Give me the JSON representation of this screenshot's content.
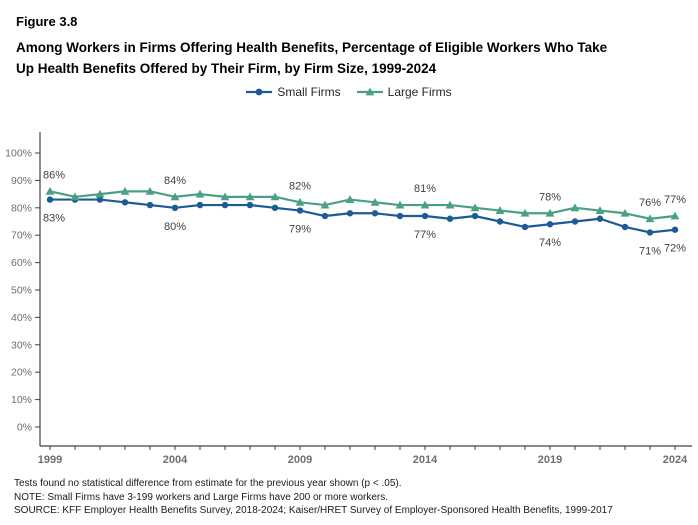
{
  "header": {
    "figure_number": "Figure 3.8",
    "title_lines": [
      "Among Workers in Firms Offering Health Benefits, Percentage of Eligible Workers Who Take",
      "Up Health Benefits Offered by Their Firm, by Firm Size, 1999-2024"
    ]
  },
  "legend": {
    "items": [
      {
        "label": "Small Firms",
        "color": "#1c5a99",
        "marker": "circle"
      },
      {
        "label": "Large Firms",
        "color": "#4aa083",
        "marker": "triangle"
      }
    ]
  },
  "chart_data": {
    "type": "line",
    "title": "Percentage of Eligible Workers Who Take Up Health Benefits, by Firm Size, 1999-2024",
    "xlabel": "",
    "ylabel": "",
    "ylim": [
      0,
      100
    ],
    "grid": false,
    "legend_position": "top-center",
    "x": [
      1999,
      2000,
      2001,
      2002,
      2003,
      2004,
      2005,
      2006,
      2007,
      2008,
      2009,
      2010,
      2011,
      2012,
      2013,
      2014,
      2015,
      2016,
      2017,
      2018,
      2019,
      2020,
      2021,
      2022,
      2023,
      2024
    ],
    "series": [
      {
        "name": "Small Firms",
        "marker": "circle",
        "color": "#1c5a99",
        "values": [
          83,
          83,
          83,
          82,
          81,
          80,
          81,
          81,
          81,
          80,
          79,
          77,
          78,
          78,
          77,
          77,
          76,
          77,
          75,
          73,
          74,
          75,
          76,
          73,
          71,
          72
        ]
      },
      {
        "name": "Large Firms",
        "marker": "triangle",
        "color": "#4aa083",
        "values": [
          86,
          84,
          85,
          86,
          86,
          84,
          85,
          84,
          84,
          84,
          82,
          81,
          83,
          82,
          81,
          81,
          81,
          80,
          79,
          78,
          78,
          80,
          79,
          78,
          76,
          77
        ]
      }
    ],
    "y_ticks": [
      "0%",
      "10%",
      "20%",
      "30%",
      "40%",
      "50%",
      "60%",
      "70%",
      "80%",
      "90%",
      "100%"
    ],
    "x_tick_labels": [
      1999,
      2004,
      2009,
      2014,
      2019,
      2024
    ],
    "point_labels": [
      {
        "series": 0,
        "year": 1999,
        "text": "83%"
      },
      {
        "series": 0,
        "year": 2004,
        "text": "80%"
      },
      {
        "series": 0,
        "year": 2009,
        "text": "79%"
      },
      {
        "series": 0,
        "year": 2014,
        "text": "77%"
      },
      {
        "series": 0,
        "year": 2019,
        "text": "74%"
      },
      {
        "series": 0,
        "year": 2023,
        "text": "71%"
      },
      {
        "series": 0,
        "year": 2024,
        "text": "72%"
      },
      {
        "series": 1,
        "year": 1999,
        "text": "86%"
      },
      {
        "series": 1,
        "year": 2004,
        "text": "84%"
      },
      {
        "series": 1,
        "year": 2009,
        "text": "82%"
      },
      {
        "series": 1,
        "year": 2014,
        "text": "81%"
      },
      {
        "series": 1,
        "year": 2019,
        "text": "78%"
      },
      {
        "series": 1,
        "year": 2023,
        "text": "76%"
      },
      {
        "series": 1,
        "year": 2024,
        "text": "77%"
      }
    ],
    "axis_color": "#404040"
  },
  "footnotes": {
    "lines": [
      "Tests found no statistical difference from estimate for the previous year shown (p < .05).",
      "NOTE: Small Firms have 3-199 workers and Large Firms have 200 or more workers.",
      "SOURCE: KFF Employer Health Benefits Survey, 2018-2024; Kaiser/HRET Survey of Employer-Sponsored Health Benefits, 1999-2017"
    ]
  }
}
